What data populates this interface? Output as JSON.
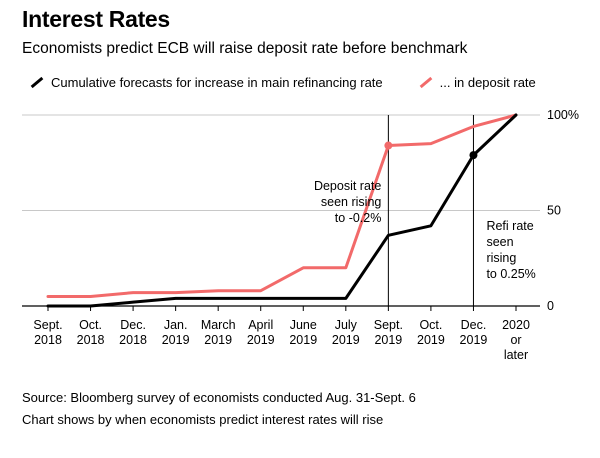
{
  "chart_data": {
    "type": "line",
    "title": "Interest Rates",
    "subtitle": "Economists predict ECB will raise deposit rate before benchmark",
    "categories": [
      [
        "Sept.",
        "2018"
      ],
      [
        "Oct.",
        "2018"
      ],
      [
        "Dec.",
        "2018"
      ],
      [
        "Jan.",
        "2019"
      ],
      [
        "March",
        "2019"
      ],
      [
        "April",
        "2019"
      ],
      [
        "June",
        "2019"
      ],
      [
        "July",
        "2019"
      ],
      [
        "Sept.",
        "2019"
      ],
      [
        "Oct.",
        "2019"
      ],
      [
        "Dec.",
        "2019"
      ],
      [
        "2020",
        "or",
        "later"
      ]
    ],
    "series": [
      {
        "name": "Cumulative forecasts for increase in main refinancing rate",
        "color": "#000000",
        "values": [
          0,
          0,
          2,
          4,
          4,
          4,
          4,
          4,
          37,
          42,
          79,
          100
        ]
      },
      {
        "name": "... in deposit rate",
        "color": "#f26a6a",
        "values": [
          5,
          5,
          7,
          7,
          8,
          8,
          20,
          20,
          84,
          85,
          94,
          100
        ]
      }
    ],
    "ylim": [
      0,
      100
    ],
    "yticks": [
      {
        "value": 0,
        "label": "0"
      },
      {
        "value": 50,
        "label": "50"
      },
      {
        "value": 100,
        "label": "100%"
      }
    ],
    "grid": true,
    "legend": "top",
    "annotations": [
      {
        "series": 1,
        "index": 8,
        "lines": [
          "Deposit rate",
          "seen rising",
          "to -0.2%"
        ]
      },
      {
        "series": 0,
        "index": 10,
        "lines": [
          "Refi rate",
          "seen",
          "rising",
          "to 0.25%"
        ]
      }
    ]
  },
  "footer": {
    "source": "Source: Bloomberg survey of economists conducted Aug. 31-Sept. 6",
    "note": "Chart shows by when economists predict interest rates will rise"
  }
}
